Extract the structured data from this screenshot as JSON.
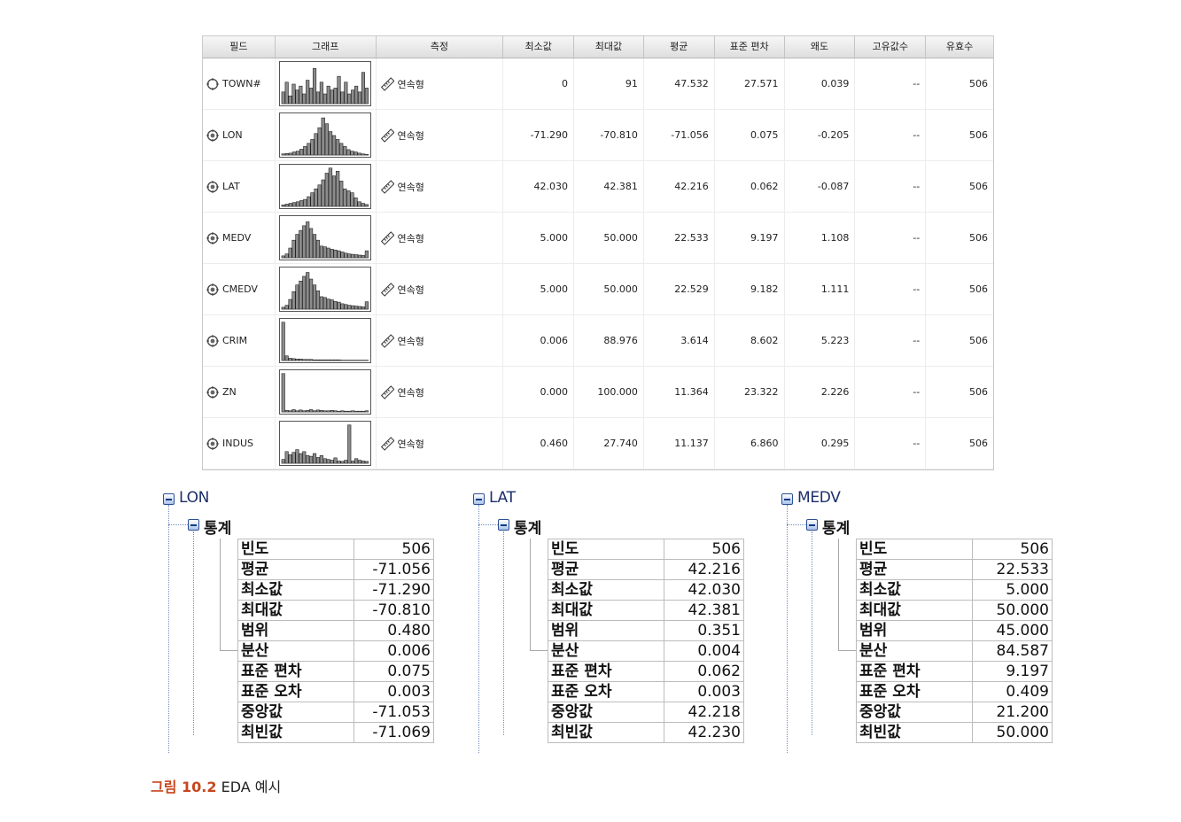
{
  "table": {
    "headers": {
      "field": "필드",
      "graph": "그래프",
      "measure": "측정",
      "min": "최소값",
      "max": "최대값",
      "mean": "평균",
      "sd": "표준 편차",
      "skew": "왜도",
      "unique": "고유값수",
      "valid": "유효수"
    },
    "rows": [
      {
        "field": "TOWN#",
        "measure": "연속형",
        "min": "0",
        "max": "91",
        "mean": "47.532",
        "sd": "27.571",
        "skew": "0.039",
        "unique": "--",
        "valid": "506",
        "hist": [
          30,
          55,
          20,
          50,
          35,
          45,
          25,
          60,
          40,
          90,
          30,
          55,
          25,
          45,
          35,
          40,
          70,
          30,
          55,
          25,
          35,
          45,
          30,
          80,
          40
        ]
      },
      {
        "field": "LON",
        "measure": "연속형",
        "min": "-71.290",
        "max": "-70.810",
        "mean": "-71.056",
        "sd": "0.075",
        "skew": "-0.205",
        "unique": "--",
        "valid": "506",
        "hist": [
          3,
          4,
          5,
          8,
          10,
          15,
          22,
          30,
          40,
          55,
          70,
          95,
          80,
          60,
          50,
          40,
          30,
          22,
          14,
          10,
          8,
          5,
          3,
          2
        ]
      },
      {
        "field": "LAT",
        "measure": "연속형",
        "min": "42.030",
        "max": "42.381",
        "mean": "42.216",
        "sd": "0.062",
        "skew": "-0.087",
        "unique": "--",
        "valid": "506",
        "hist": [
          4,
          6,
          8,
          10,
          12,
          15,
          18,
          25,
          35,
          45,
          55,
          68,
          85,
          98,
          78,
          90,
          65,
          45,
          40,
          35,
          22,
          12,
          8,
          5
        ]
      },
      {
        "field": "MEDV",
        "measure": "연속형",
        "min": "5.000",
        "max": "50.000",
        "mean": "22.533",
        "sd": "9.197",
        "skew": "1.108",
        "unique": "--",
        "valid": "506",
        "hist": [
          5,
          10,
          25,
          45,
          60,
          70,
          82,
          92,
          75,
          60,
          45,
          30,
          28,
          25,
          22,
          20,
          18,
          15,
          12,
          10,
          9,
          8,
          7,
          6,
          18
        ]
      },
      {
        "field": "CMEDV",
        "measure": "연속형",
        "min": "5.000",
        "max": "50.000",
        "mean": "22.529",
        "sd": "9.182",
        "skew": "1.111",
        "unique": "--",
        "valid": "506",
        "hist": [
          5,
          10,
          25,
          45,
          62,
          72,
          84,
          94,
          77,
          62,
          47,
          32,
          30,
          26,
          24,
          20,
          18,
          14,
          12,
          10,
          9,
          8,
          7,
          6,
          19
        ]
      },
      {
        "field": "CRIM",
        "measure": "연속형",
        "min": "0.006",
        "max": "88.976",
        "mean": "3.614",
        "sd": "8.602",
        "skew": "5.223",
        "unique": "--",
        "valid": "506",
        "hist": [
          98,
          12,
          6,
          5,
          4,
          4,
          3,
          3,
          3,
          2,
          2,
          2,
          2,
          2,
          2,
          2,
          2,
          1,
          1,
          1,
          1,
          1,
          1,
          1,
          1
        ]
      },
      {
        "field": "ZN",
        "measure": "연속형",
        "min": "0.000",
        "max": "100.000",
        "mean": "11.364",
        "sd": "23.322",
        "skew": "2.226",
        "unique": "--",
        "valid": "506",
        "hist": [
          98,
          4,
          3,
          6,
          3,
          5,
          3,
          4,
          6,
          3,
          5,
          4,
          3,
          3,
          4,
          3,
          2,
          3,
          2,
          2,
          3,
          2,
          2,
          2,
          3
        ]
      },
      {
        "field": "INDUS",
        "measure": "연속형",
        "min": "0.460",
        "max": "27.740",
        "mean": "11.137",
        "sd": "6.860",
        "skew": "0.295",
        "unique": "--",
        "valid": "506",
        "hist": [
          10,
          30,
          22,
          28,
          35,
          25,
          30,
          20,
          18,
          25,
          15,
          20,
          12,
          10,
          8,
          14,
          6,
          5,
          8,
          98,
          6,
          12,
          8,
          6,
          5
        ]
      }
    ]
  },
  "panels": [
    {
      "title": "LON",
      "section": "통계",
      "stats": [
        {
          "k": "빈도",
          "v": "506"
        },
        {
          "k": "평균",
          "v": "-71.056"
        },
        {
          "k": "최소값",
          "v": "-71.290"
        },
        {
          "k": "최대값",
          "v": "-70.810"
        },
        {
          "k": "범위",
          "v": "0.480"
        },
        {
          "k": "분산",
          "v": "0.006"
        },
        {
          "k": "표준 편차",
          "v": "0.075"
        },
        {
          "k": "표준 오차",
          "v": "0.003"
        },
        {
          "k": "중앙값",
          "v": "-71.053"
        },
        {
          "k": "최빈값",
          "v": "-71.069"
        }
      ]
    },
    {
      "title": "LAT",
      "section": "통계",
      "stats": [
        {
          "k": "빈도",
          "v": "506"
        },
        {
          "k": "평균",
          "v": "42.216"
        },
        {
          "k": "최소값",
          "v": "42.030"
        },
        {
          "k": "최대값",
          "v": "42.381"
        },
        {
          "k": "범위",
          "v": "0.351"
        },
        {
          "k": "분산",
          "v": "0.004"
        },
        {
          "k": "표준 편차",
          "v": "0.062"
        },
        {
          "k": "표준 오차",
          "v": "0.003"
        },
        {
          "k": "중앙값",
          "v": "42.218"
        },
        {
          "k": "최빈값",
          "v": "42.230"
        }
      ]
    },
    {
      "title": "MEDV",
      "section": "통계",
      "stats": [
        {
          "k": "빈도",
          "v": "506"
        },
        {
          "k": "평균",
          "v": "22.533"
        },
        {
          "k": "최소값",
          "v": "5.000"
        },
        {
          "k": "최대값",
          "v": "50.000"
        },
        {
          "k": "범위",
          "v": "45.000"
        },
        {
          "k": "분산",
          "v": "84.587"
        },
        {
          "k": "표준 편차",
          "v": "9.197"
        },
        {
          "k": "표준 오차",
          "v": "0.409"
        },
        {
          "k": "중앙값",
          "v": "21.200"
        },
        {
          "k": "최빈값",
          "v": "50.000"
        }
      ]
    }
  ],
  "caption": {
    "number": "그림 10.2",
    "text": "EDA 예시"
  },
  "icons": {
    "field": "target-icon",
    "measure": "ruler-icon",
    "tree_toggle": "minus-box-icon"
  },
  "colors": {
    "caption_number": "#c8461d",
    "tree_title": "#1c2e6b",
    "histogram_bar": "#8c8c8c"
  }
}
